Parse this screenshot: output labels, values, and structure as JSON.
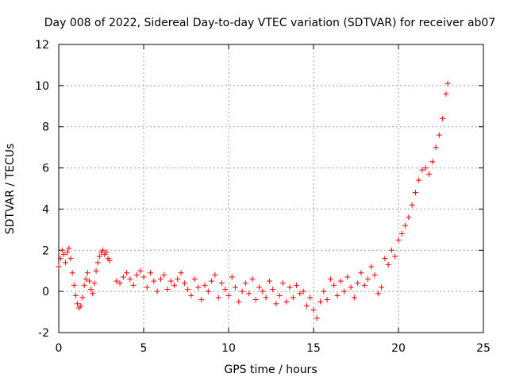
{
  "chart_data": {
    "type": "scatter",
    "title": "Day 008 of 2022, Sidereal Day-to-day VTEC variation (SDTVAR) for receiver ab07",
    "xlabel": "GPS time / hours",
    "ylabel": "SDTVAR / TECUs",
    "xlim": [
      0,
      25
    ],
    "ylim": [
      -2,
      12
    ],
    "xticks": [
      0,
      5,
      10,
      15,
      20,
      25
    ],
    "xtick_labels": [
      "0",
      "5",
      "10",
      "15",
      "20",
      "25"
    ],
    "yticks": [
      -2,
      0,
      2,
      4,
      6,
      8,
      10,
      12
    ],
    "ytick_labels": [
      "-2",
      "0",
      "2",
      "4",
      "6",
      "8",
      "10",
      "12"
    ],
    "grid": true,
    "marker": "+",
    "color": "#ff0000",
    "series": [
      {
        "name": "SDTVAR",
        "x": [
          0.0,
          0.1,
          0.2,
          0.3,
          0.4,
          0.5,
          0.6,
          0.7,
          0.8,
          0.9,
          1.0,
          1.1,
          1.2,
          1.3,
          1.4,
          1.5,
          1.6,
          1.7,
          1.8,
          1.9,
          2.0,
          2.1,
          2.2,
          2.3,
          2.4,
          2.5,
          2.6,
          2.7,
          2.8,
          2.9,
          3.0,
          3.4,
          3.6,
          3.8,
          4.0,
          4.2,
          4.4,
          4.6,
          4.8,
          5.0,
          5.2,
          5.4,
          5.6,
          5.8,
          6.0,
          6.2,
          6.4,
          6.6,
          6.8,
          7.0,
          7.2,
          7.4,
          7.6,
          7.8,
          8.0,
          8.2,
          8.4,
          8.6,
          8.8,
          9.0,
          9.2,
          9.4,
          9.6,
          9.8,
          10.0,
          10.2,
          10.4,
          10.6,
          10.8,
          11.0,
          11.2,
          11.4,
          11.6,
          11.8,
          12.0,
          12.2,
          12.4,
          12.6,
          12.8,
          13.0,
          13.2,
          13.4,
          13.6,
          13.8,
          14.0,
          14.2,
          14.4,
          14.6,
          14.8,
          15.0,
          15.2,
          15.4,
          15.6,
          15.8,
          16.0,
          16.2,
          16.4,
          16.6,
          16.8,
          17.0,
          17.2,
          17.4,
          17.6,
          17.8,
          18.0,
          18.2,
          18.4,
          18.6,
          18.8,
          19.0,
          19.2,
          19.4,
          19.6,
          19.8,
          20.0,
          20.2,
          20.4,
          20.6,
          20.8,
          21.0,
          21.2,
          21.4,
          21.6,
          21.8,
          22.0,
          22.2,
          22.4,
          22.6,
          22.8,
          22.9
        ],
        "y": [
          1.2,
          1.6,
          2.0,
          1.8,
          1.4,
          1.9,
          2.1,
          1.6,
          0.9,
          0.3,
          -0.2,
          -0.6,
          -0.8,
          -0.7,
          -0.3,
          0.3,
          0.6,
          0.9,
          0.5,
          0.1,
          -0.1,
          0.4,
          1.0,
          1.4,
          1.7,
          1.9,
          2.0,
          1.8,
          1.9,
          1.6,
          1.5,
          0.5,
          0.4,
          0.7,
          0.9,
          0.6,
          0.3,
          0.8,
          1.0,
          0.7,
          0.2,
          0.9,
          0.5,
          0.0,
          0.6,
          0.8,
          0.1,
          0.5,
          0.3,
          0.6,
          0.9,
          0.4,
          0.1,
          -0.2,
          0.6,
          0.2,
          -0.4,
          0.3,
          0.0,
          0.5,
          0.8,
          -0.3,
          0.4,
          0.1,
          -0.2,
          0.7,
          0.2,
          -0.5,
          0.0,
          0.4,
          -0.1,
          0.6,
          -0.4,
          0.2,
          0.0,
          -0.3,
          0.5,
          0.1,
          -0.6,
          -0.2,
          0.4,
          -0.5,
          0.2,
          -0.3,
          0.3,
          -0.1,
          0.0,
          -0.7,
          -0.3,
          -0.9,
          -1.3,
          -0.5,
          0.0,
          -0.4,
          0.6,
          0.3,
          -0.2,
          0.5,
          0.0,
          0.7,
          0.2,
          -0.3,
          0.4,
          0.9,
          0.3,
          0.6,
          1.2,
          0.8,
          -0.1,
          0.2,
          1.6,
          1.3,
          2.0,
          1.7,
          2.5,
          2.8,
          3.2,
          3.6,
          4.2,
          4.8,
          5.4,
          5.9,
          6.0,
          5.7,
          6.3,
          7.0,
          7.6,
          8.4,
          9.6,
          10.1
        ]
      }
    ]
  }
}
